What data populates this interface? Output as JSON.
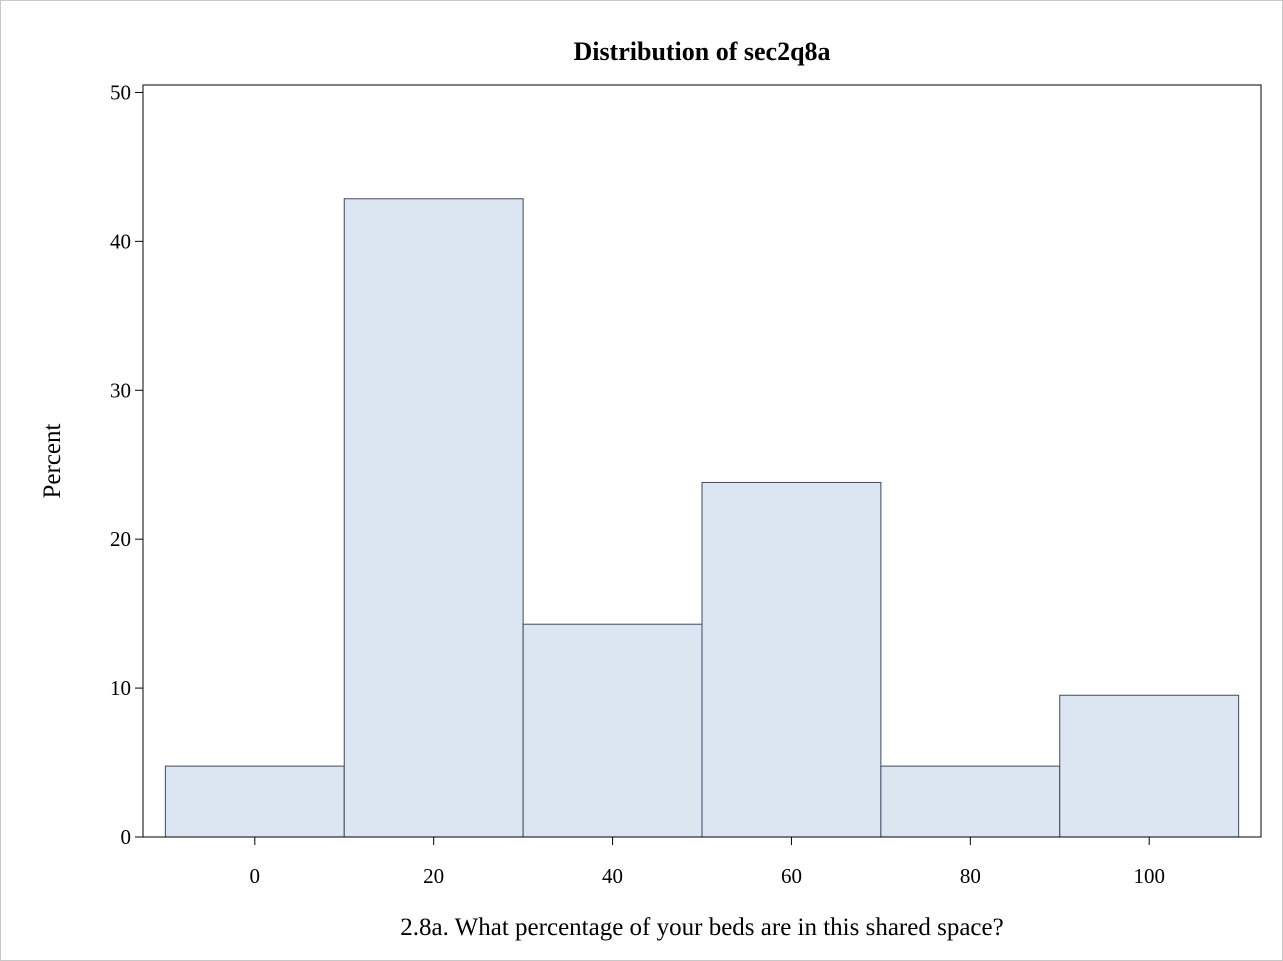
{
  "chart_data": {
    "type": "bar",
    "title": "Distribution of sec2q8a",
    "xlabel": "2.8a.  What percentage of your beds are in this shared space?",
    "ylabel": "Percent",
    "bins": [
      {
        "start": -10,
        "end": 10,
        "value": 4.76
      },
      {
        "start": 10,
        "end": 30,
        "value": 42.86
      },
      {
        "start": 30,
        "end": 50,
        "value": 14.29
      },
      {
        "start": 50,
        "end": 70,
        "value": 23.81
      },
      {
        "start": 70,
        "end": 90,
        "value": 4.76
      },
      {
        "start": 90,
        "end": 110,
        "value": 9.52
      }
    ],
    "xlim": [
      -12.5,
      112.5
    ],
    "ylim": [
      0,
      50.5
    ],
    "xticks": [
      0,
      20,
      40,
      60,
      80,
      100
    ],
    "yticks": [
      0,
      10,
      20,
      30,
      40,
      50
    ],
    "grid": false,
    "bar_color": "#dce5f2",
    "bar_edge_color": "#3d4a5c"
  }
}
